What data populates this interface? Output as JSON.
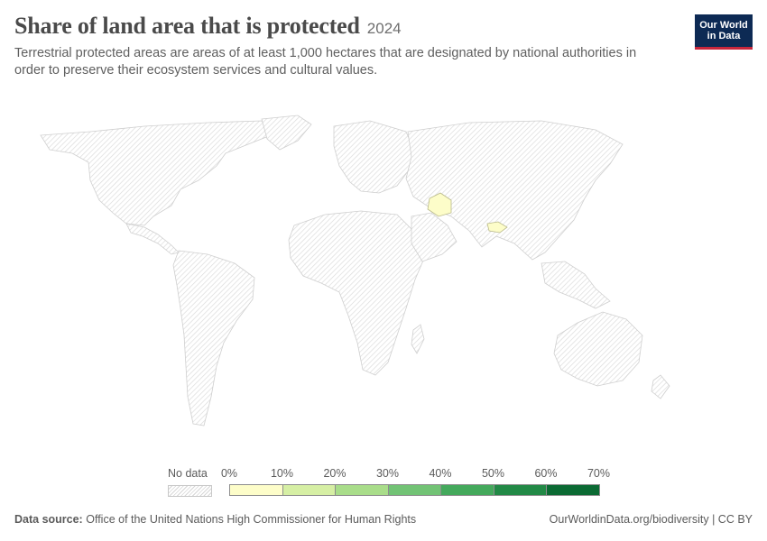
{
  "header": {
    "title": "Share of land area that is protected",
    "year": "2024",
    "subtitle": "Terrestrial protected areas are areas of at least 1,000 hectares that are designated by national authorities in order to preserve their ecosystem services and cultural values."
  },
  "logo": {
    "line1": "Our World",
    "line2": "in Data"
  },
  "legend": {
    "no_data_label": "No data",
    "ticks": [
      "0%",
      "10%",
      "20%",
      "30%",
      "40%",
      "50%",
      "60%",
      "70%"
    ],
    "colors": [
      "#fdfdc9",
      "#d6efa4",
      "#a9dd8a",
      "#72c375",
      "#44a95c",
      "#228946",
      "#0b6a33"
    ]
  },
  "map_data": {
    "highlighted_regions": [
      {
        "region": "Central Asia (Turkmenistan area)",
        "bin": "0%–10%",
        "color": "#fdfdc9"
      },
      {
        "region": "South Asia (Nepal area)",
        "bin": "0%–10%",
        "color": "#fdfdc9"
      }
    ],
    "default_fill": "No data"
  },
  "footer": {
    "source_label": "Data source:",
    "source_text": "Office of the United Nations High Commissioner for Human Rights",
    "url": "OurWorldinData.org/biodiversity | CC BY"
  }
}
